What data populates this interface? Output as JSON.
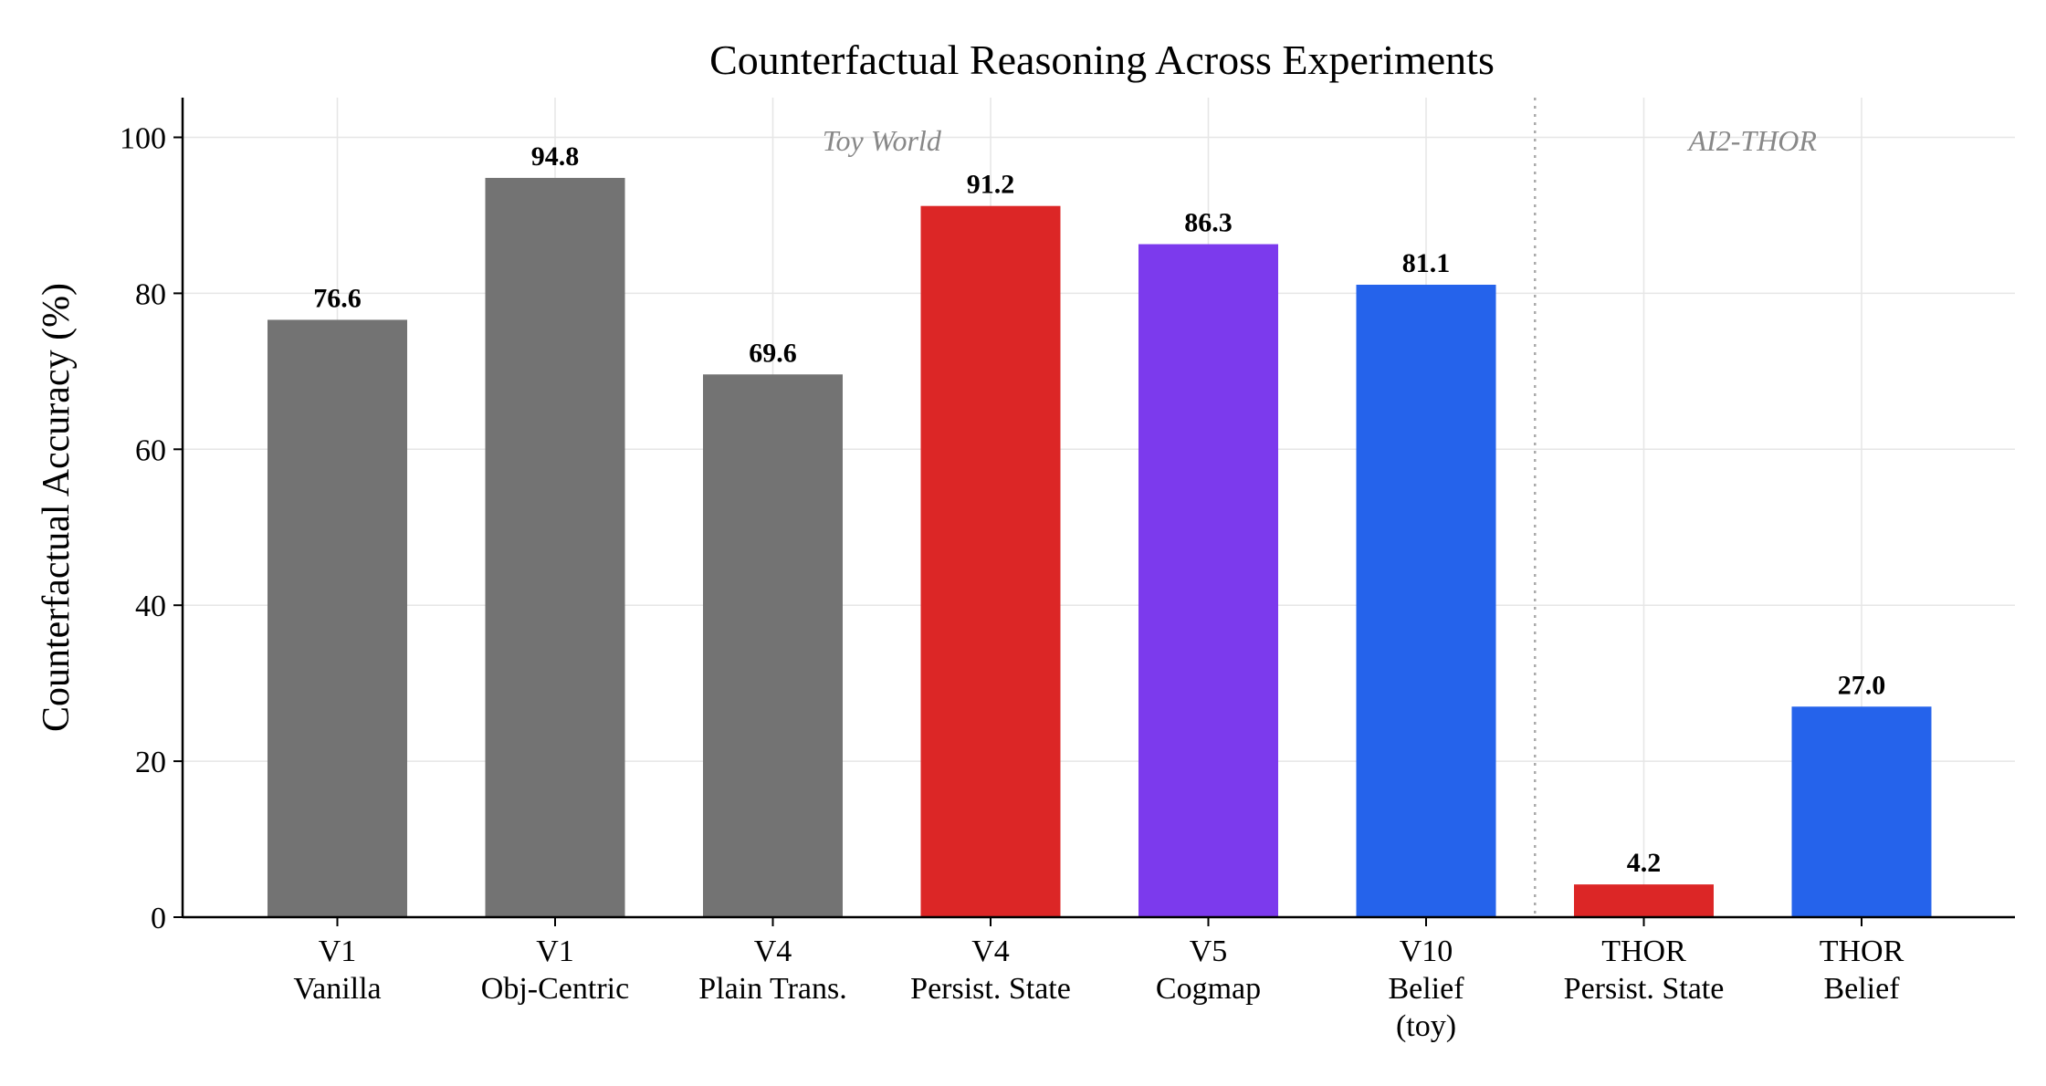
{
  "chart_data": {
    "type": "bar",
    "title": "Counterfactual Reasoning Across Experiments",
    "xlabel": "",
    "ylabel": "Counterfactual Accuracy (%)",
    "ylim": [
      0,
      105
    ],
    "yticks": [
      0,
      20,
      40,
      60,
      80,
      100
    ],
    "grid": true,
    "categories": [
      [
        "V1",
        "Vanilla"
      ],
      [
        "V1",
        "Obj-Centric"
      ],
      [
        "V4",
        "Plain Trans."
      ],
      [
        "V4",
        "Persist. State"
      ],
      [
        "V5",
        "Cogmap"
      ],
      [
        "V10",
        "Belief",
        "(toy)"
      ],
      [
        "THOR",
        "Persist. State"
      ],
      [
        "THOR",
        "Belief"
      ]
    ],
    "values": [
      76.6,
      94.8,
      69.6,
      91.2,
      86.3,
      81.1,
      4.2,
      27.0
    ],
    "value_labels": [
      "76.6",
      "94.8",
      "69.6",
      "91.2",
      "86.3",
      "81.1",
      "4.2",
      "27.0"
    ],
    "colors": [
      "#737373",
      "#737373",
      "#737373",
      "#dc2626",
      "#7c3aed",
      "#2563eb",
      "#dc2626",
      "#2563eb"
    ],
    "region_labels": [
      {
        "text": "Toy World",
        "categories": [
          0,
          5
        ]
      },
      {
        "text": "AI2-THOR",
        "categories": [
          6,
          7
        ]
      }
    ],
    "separator_after_category": 5
  }
}
